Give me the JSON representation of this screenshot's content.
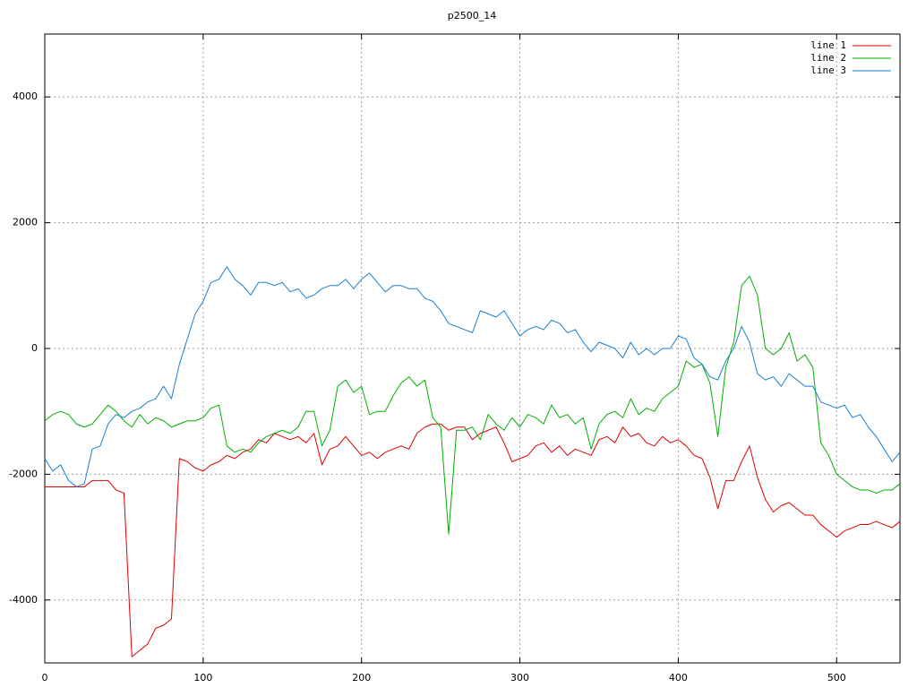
{
  "chart_data": {
    "type": "line",
    "title": "p2500_14",
    "x": [
      0,
      5,
      10,
      15,
      20,
      25,
      30,
      35,
      40,
      45,
      50,
      55,
      60,
      65,
      70,
      75,
      80,
      85,
      90,
      95,
      100,
      105,
      110,
      115,
      120,
      125,
      130,
      135,
      140,
      145,
      150,
      155,
      160,
      165,
      170,
      175,
      180,
      185,
      190,
      195,
      200,
      205,
      210,
      215,
      220,
      225,
      230,
      235,
      240,
      245,
      250,
      255,
      260,
      265,
      270,
      275,
      280,
      285,
      290,
      295,
      300,
      305,
      310,
      315,
      320,
      325,
      330,
      335,
      340,
      345,
      350,
      355,
      360,
      365,
      370,
      375,
      380,
      385,
      390,
      395,
      400,
      405,
      410,
      415,
      420,
      425,
      430,
      435,
      440,
      445,
      450,
      455,
      460,
      465,
      470,
      475,
      480,
      485,
      490,
      495,
      500,
      505,
      510,
      515,
      520,
      525,
      530,
      535,
      540
    ],
    "series": [
      {
        "name": "line 1",
        "color": "#dd0000",
        "values": [
          -2200,
          -2200,
          -2200,
          -2200,
          -2200,
          -2200,
          -2100,
          -2100,
          -2100,
          -2250,
          -2300,
          -4900,
          -4800,
          -4700,
          -4450,
          -4400,
          -4300,
          -1750,
          -1800,
          -1900,
          -1950,
          -1850,
          -1800,
          -1700,
          -1750,
          -1650,
          -1600,
          -1450,
          -1500,
          -1350,
          -1400,
          -1450,
          -1400,
          -1500,
          -1350,
          -1850,
          -1600,
          -1550,
          -1400,
          -1550,
          -1700,
          -1650,
          -1750,
          -1650,
          -1600,
          -1550,
          -1600,
          -1350,
          -1250,
          -1200,
          -1200,
          -1300,
          -1250,
          -1250,
          -1450,
          -1350,
          -1300,
          -1250,
          -1500,
          -1800,
          -1750,
          -1700,
          -1550,
          -1500,
          -1650,
          -1550,
          -1700,
          -1600,
          -1650,
          -1700,
          -1450,
          -1400,
          -1500,
          -1250,
          -1400,
          -1350,
          -1500,
          -1550,
          -1400,
          -1500,
          -1450,
          -1550,
          -1700,
          -1750,
          -2050,
          -2550,
          -2100,
          -2100,
          -1800,
          -1550,
          -2050,
          -2400,
          -2600,
          -2500,
          -2450,
          -2550,
          -2650,
          -2650,
          -2800,
          -2900,
          -3000,
          -2900,
          -2850,
          -2800,
          -2800,
          -2750,
          -2800,
          -2850,
          -2750
        ]
      },
      {
        "name": "line 2",
        "color": "#00b000",
        "values": [
          -1150,
          -1050,
          -1000,
          -1050,
          -1200,
          -1250,
          -1200,
          -1050,
          -900,
          -1000,
          -1150,
          -1250,
          -1050,
          -1200,
          -1100,
          -1150,
          -1250,
          -1200,
          -1150,
          -1150,
          -1100,
          -950,
          -900,
          -1550,
          -1650,
          -1600,
          -1650,
          -1500,
          -1400,
          -1350,
          -1300,
          -1350,
          -1250,
          -1000,
          -1000,
          -1550,
          -1300,
          -600,
          -500,
          -700,
          -600,
          -1050,
          -1000,
          -1000,
          -750,
          -550,
          -450,
          -600,
          -500,
          -1100,
          -1250,
          -2950,
          -1300,
          -1300,
          -1250,
          -1450,
          -1050,
          -1200,
          -1300,
          -1100,
          -1250,
          -1050,
          -1100,
          -1200,
          -900,
          -1100,
          -1050,
          -1200,
          -1100,
          -1600,
          -1200,
          -1050,
          -1000,
          -1100,
          -800,
          -1050,
          -950,
          -1000,
          -800,
          -700,
          -600,
          -200,
          -300,
          -250,
          -550,
          -1400,
          -300,
          100,
          1000,
          1150,
          850,
          0,
          -100,
          0,
          250,
          -200,
          -100,
          -300,
          -1500,
          -1700,
          -2000,
          -2100,
          -2200,
          -2250,
          -2250,
          -2300,
          -2250,
          -2250,
          -2150
        ]
      },
      {
        "name": "line 3",
        "color": "#1a7fd0",
        "values": [
          -1750,
          -1950,
          -1850,
          -2100,
          -2200,
          -2150,
          -1600,
          -1550,
          -1200,
          -1050,
          -1100,
          -1000,
          -950,
          -850,
          -800,
          -600,
          -800,
          -250,
          150,
          550,
          750,
          1050,
          1100,
          1300,
          1100,
          1000,
          850,
          1050,
          1050,
          1000,
          1050,
          900,
          950,
          800,
          850,
          950,
          1000,
          1000,
          1100,
          950,
          1100,
          1200,
          1050,
          900,
          1000,
          1000,
          950,
          950,
          800,
          750,
          600,
          400,
          350,
          300,
          250,
          600,
          550,
          500,
          600,
          400,
          200,
          300,
          350,
          300,
          450,
          400,
          250,
          300,
          100,
          -50,
          100,
          50,
          0,
          -150,
          100,
          -100,
          0,
          -100,
          0,
          0,
          200,
          150,
          -150,
          -250,
          -450,
          -500,
          -200,
          0,
          350,
          100,
          -400,
          -500,
          -450,
          -600,
          -400,
          -500,
          -600,
          -600,
          -850,
          -900,
          -950,
          -900,
          -1100,
          -1050,
          -1250,
          -1400,
          -1600,
          -1800,
          -1650
        ]
      }
    ],
    "xlim": [
      0,
      540
    ],
    "ylim": [
      -5000,
      5000
    ],
    "xticks": [
      0,
      100,
      200,
      300,
      400,
      500
    ],
    "yticks": [
      -4000,
      -2000,
      0,
      2000,
      4000
    ],
    "grid": true,
    "legend": "top-right"
  }
}
